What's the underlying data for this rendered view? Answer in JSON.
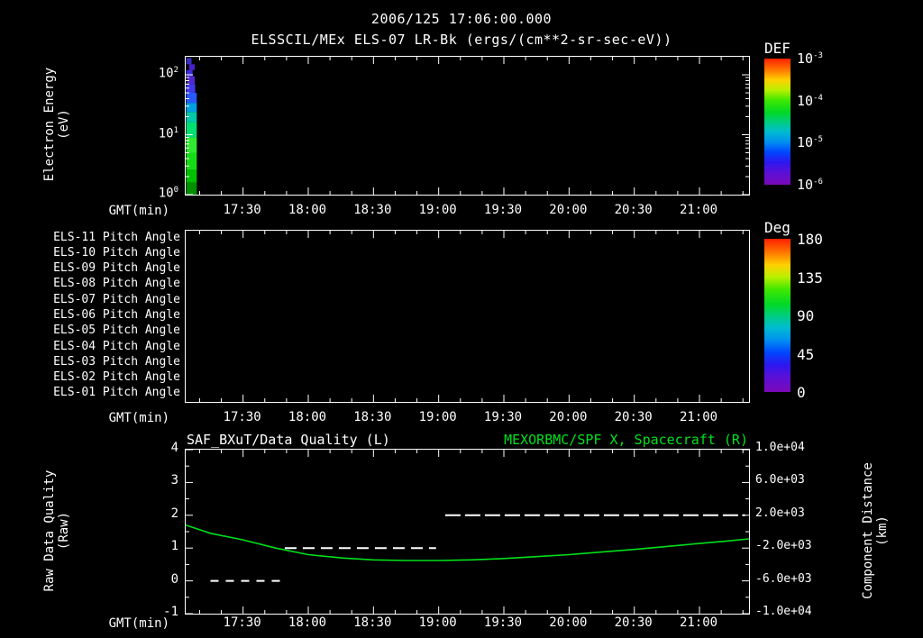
{
  "header": {
    "title": "2006/125 17:06:00.000",
    "subtitle": "ELSSCIL/MEx ELS-07 LR-Bk  (ergs/(cm**2-sr-sec-eV))"
  },
  "time_axis": {
    "label": "GMT(min)",
    "start_hour": 17.06,
    "end_hour": 21.38,
    "minor_step_minutes": 10,
    "major_ticks": [
      {
        "hour": 17.5,
        "label": "17:30"
      },
      {
        "hour": 18.0,
        "label": "18:00"
      },
      {
        "hour": 18.5,
        "label": "18:30"
      },
      {
        "hour": 19.0,
        "label": "19:00"
      },
      {
        "hour": 19.5,
        "label": "19:30"
      },
      {
        "hour": 20.0,
        "label": "20:00"
      },
      {
        "hour": 20.5,
        "label": "20:30"
      },
      {
        "hour": 21.0,
        "label": "21:00"
      }
    ]
  },
  "chart_data": [
    {
      "type": "heatmap",
      "name": "electron-energy-spectrogram",
      "ylabel_line1": "Electron Energy",
      "ylabel_line2": "(eV)",
      "y_scale": "log",
      "energy_min_ev": 1,
      "energy_max_ev": 200,
      "y_ticks": [
        {
          "base": "10",
          "exp": "2",
          "value": 100
        },
        {
          "base": "10",
          "exp": "1",
          "value": 10
        },
        {
          "base": "10",
          "exp": "0",
          "value": 1
        }
      ],
      "colorbar": {
        "title": "DEF",
        "units": "ergs/(cm**2-sr-sec-eV)",
        "ticks": [
          {
            "base": "10",
            "exp": "-3"
          },
          {
            "base": "10",
            "exp": "-4"
          },
          {
            "base": "10",
            "exp": "-5"
          },
          {
            "base": "10",
            "exp": "-6"
          }
        ]
      },
      "data_column": {
        "start_hour": 17.065,
        "end_hour": 17.145,
        "cells": [
          {
            "e_min_ev": 1.0,
            "e_max_ev": 1.6,
            "def": 5e-05,
            "color": "#009000",
            "x_frac": 0.0,
            "w_frac": 1.0
          },
          {
            "e_min_ev": 1.6,
            "e_max_ev": 2.6,
            "def": 6e-05,
            "color": "#00c000",
            "x_frac": 0.0,
            "w_frac": 1.0
          },
          {
            "e_min_ev": 2.6,
            "e_max_ev": 5.0,
            "def": 8e-05,
            "color": "#16dc16",
            "x_frac": 0.0,
            "w_frac": 1.0
          },
          {
            "e_min_ev": 5.0,
            "e_max_ev": 9.0,
            "def": 9e-05,
            "color": "#30e830",
            "x_frac": 0.0,
            "w_frac": 1.0
          },
          {
            "e_min_ev": 9.0,
            "e_max_ev": 16.0,
            "def": 7e-05,
            "color": "#00e070",
            "x_frac": 0.0,
            "w_frac": 1.0
          },
          {
            "e_min_ev": 16.0,
            "e_max_ev": 24.0,
            "def": 3e-05,
            "color": "#00c8a8",
            "x_frac": 0.0,
            "w_frac": 1.0
          },
          {
            "e_min_ev": 24.0,
            "e_max_ev": 34.0,
            "def": 1.5e-05,
            "color": "#00a0e0",
            "x_frac": 0.0,
            "w_frac": 1.0
          },
          {
            "e_min_ev": 34.0,
            "e_max_ev": 50.0,
            "def": 6e-06,
            "color": "#2858ff",
            "x_frac": 0.0,
            "w_frac": 1.0
          },
          {
            "e_min_ev": 50.0,
            "e_max_ev": 70.0,
            "def": 4e-06,
            "color": "#4038e8",
            "x_frac": 0.0,
            "w_frac": 0.85
          },
          {
            "e_min_ev": 70.0,
            "e_max_ev": 95.0,
            "def": 3e-06,
            "color": "#5028d0",
            "x_frac": 0.1,
            "w_frac": 0.7
          },
          {
            "e_min_ev": 95.0,
            "e_max_ev": 120.0,
            "def": 3.5e-06,
            "color": "#3c2cd8",
            "x_frac": 0.0,
            "w_frac": 0.6
          },
          {
            "e_min_ev": 120.0,
            "e_max_ev": 150.0,
            "def": 3e-06,
            "color": "#4820c8",
            "x_frac": 0.25,
            "w_frac": 0.55
          },
          {
            "e_min_ev": 150.0,
            "e_max_ev": 190.0,
            "def": 3.5e-06,
            "color": "#3830c0",
            "x_frac": 0.0,
            "w_frac": 0.5
          }
        ]
      }
    },
    {
      "type": "heatmap",
      "name": "pitch-angle-panel",
      "row_labels": [
        "ELS-11 Pitch Angle",
        "ELS-10 Pitch Angle",
        "ELS-09 Pitch Angle",
        "ELS-08 Pitch Angle",
        "ELS-07 Pitch Angle",
        "ELS-06 Pitch Angle",
        "ELS-05 Pitch Angle",
        "ELS-04 Pitch Angle",
        "ELS-03 Pitch Angle",
        "ELS-02 Pitch Angle",
        "ELS-01 Pitch Angle"
      ],
      "colorbar": {
        "title": "Deg",
        "ticks": [
          "180",
          "135",
          "90",
          "45",
          "0"
        ]
      },
      "data": []
    },
    {
      "type": "line",
      "name": "quality-and-distance",
      "title_left": "SAF_BXuT/Data Quality (L)",
      "title_right": "MEXORBMC/SPF X, Spacecraft (R)",
      "title_right_color": "#00e01c",
      "ylabel_left_line1": "Raw Data Quality",
      "ylabel_left_line2": "(Raw)",
      "ylabel_right_line1": "Component Distance",
      "ylabel_right_line2": "(km)",
      "left_range": [
        -1,
        4
      ],
      "left_ticks": [
        4,
        3,
        2,
        1,
        0,
        -1
      ],
      "right_range": [
        -10000,
        10000
      ],
      "right_ticks": [
        "1.0e+04",
        "6.0e+03",
        "2.0e+03",
        "-2.0e+03",
        "-6.0e+03",
        "-1.0e+04"
      ],
      "series": [
        {
          "name": "Raw Data Quality",
          "axis": "left",
          "color": "#ffffff",
          "style": "dashed-steps",
          "segments": [
            {
              "start_hour": 17.25,
              "end_hour": 17.82,
              "value": 0
            },
            {
              "start_hour": 17.82,
              "end_hour": 18.98,
              "value": 1
            },
            {
              "start_hour": 19.05,
              "end_hour": 21.35,
              "value": 2
            }
          ]
        },
        {
          "name": "MEXORBMC/SPF X Spacecraft",
          "axis": "right",
          "color": "#00e01c",
          "style": "line",
          "points": [
            {
              "hour": 17.06,
              "km": 800
            },
            {
              "hour": 17.25,
              "km": -200
            },
            {
              "hour": 17.5,
              "km": -1000
            },
            {
              "hour": 17.75,
              "km": -2000
            },
            {
              "hour": 18.0,
              "km": -2800
            },
            {
              "hour": 18.25,
              "km": -3200
            },
            {
              "hour": 18.5,
              "km": -3440
            },
            {
              "hour": 18.75,
              "km": -3520
            },
            {
              "hour": 19.0,
              "km": -3520
            },
            {
              "hour": 19.25,
              "km": -3440
            },
            {
              "hour": 19.5,
              "km": -3280
            },
            {
              "hour": 19.75,
              "km": -3040
            },
            {
              "hour": 20.0,
              "km": -2800
            },
            {
              "hour": 20.25,
              "km": -2480
            },
            {
              "hour": 20.5,
              "km": -2160
            },
            {
              "hour": 20.75,
              "km": -1800
            },
            {
              "hour": 21.0,
              "km": -1440
            },
            {
              "hour": 21.2,
              "km": -1160
            },
            {
              "hour": 21.38,
              "km": -880
            }
          ]
        }
      ]
    }
  ]
}
